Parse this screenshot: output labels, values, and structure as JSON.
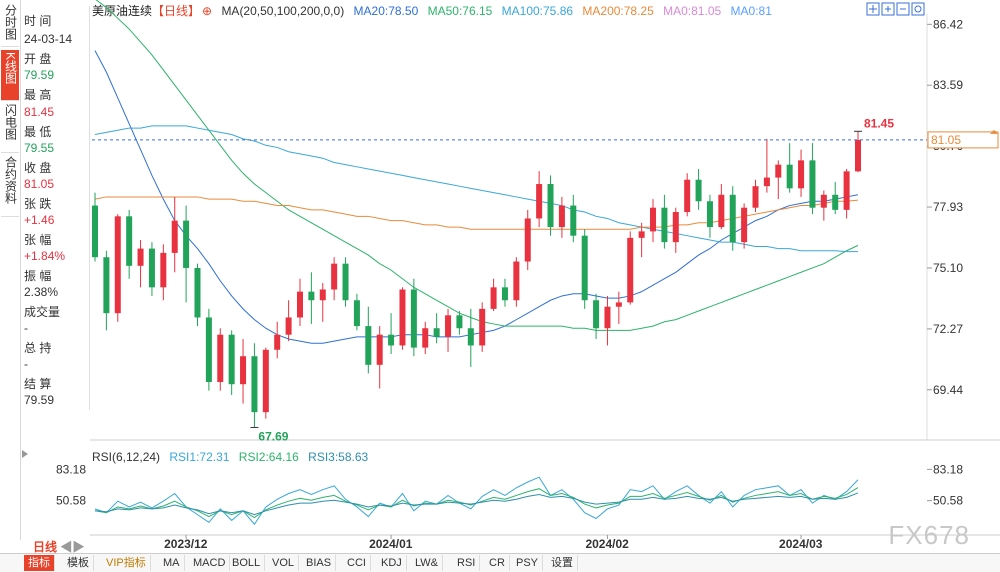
{
  "sidebar": {
    "tabs": [
      {
        "label": "分时图",
        "active": false
      },
      {
        "label": "K线图",
        "active": true
      },
      {
        "label": "闪电图",
        "active": false
      },
      {
        "label": "合约资料",
        "active": false
      }
    ]
  },
  "info": {
    "time_label": "时 间",
    "time": "24-03-14",
    "open_label": "开 盘",
    "open": "79.59",
    "high_label": "最 高",
    "high": "81.45",
    "low_label": "最 低",
    "low": "79.55",
    "close_label": "收 盘",
    "close": "81.05",
    "change_label": "张 跌",
    "change": "+1.46",
    "pct_label": "张 幅",
    "pct": "+1.84%",
    "amp_label": "振 幅",
    "amp": "2.38%",
    "volume_label": "成交量",
    "volume": "-",
    "oi_label": "总 持",
    "oi": "-",
    "settle_label": "结 算",
    "settle": "79.59"
  },
  "header": {
    "title": "美原油连续",
    "period": "【日线】",
    "ma_params": "MA(20,50,100,200,0,0)",
    "ma20": "MA20:78.50",
    "ma50": "MA50:76.15",
    "ma100": "MA100:75.86",
    "ma200": "MA200:78.25",
    "ma0a": "MA0:81.05",
    "ma0b": "MA0:81"
  },
  "rsi_header": {
    "params": "RSI(6,12,24)",
    "rsi1": "RSI1:72.31",
    "rsi2": "RSI2:64.16",
    "rsi3": "RSI3:58.63"
  },
  "bottom": {
    "period_label": "日线",
    "tabs": [
      "指标",
      "模板",
      "VIP指标",
      "MA",
      "MACD",
      "BOLL",
      "VOL",
      "BIAS",
      "CCI",
      "KDJ",
      "LW&",
      "RSI",
      "CR",
      "PSY",
      "设置"
    ]
  },
  "watermark": "FX678",
  "colors": {
    "up": "#e8323f",
    "down": "#22a35a",
    "ma20": "#2f6fd6",
    "ma50": "#2db36a",
    "ma100": "#3aa7d8",
    "ma200": "#e88b3a",
    "ma0": "#d98ad6",
    "ma0b": "#5aa0ff",
    "price_line": "#3a6fd8"
  },
  "chart_data": {
    "type": "candlestick",
    "price_axis": {
      "ticks": [
        "86.42",
        "83.59",
        "80.76",
        "77.93",
        "75.10",
        "72.27",
        "69.44"
      ],
      "ylim": [
        67.2,
        86.9
      ]
    },
    "x_labels": [
      "2023/12",
      "2024/01",
      "2024/02",
      "2024/03"
    ],
    "current_price": "81.05",
    "high_marker": "81.45",
    "low_marker": "67.69",
    "candles": [
      [
        78.0,
        78.6,
        75.4,
        75.6
      ],
      [
        75.6,
        75.9,
        72.2,
        73.0
      ],
      [
        73.0,
        77.6,
        72.6,
        77.5
      ],
      [
        77.5,
        77.8,
        74.6,
        75.2
      ],
      [
        75.2,
        76.4,
        74.2,
        76.0
      ],
      [
        76.0,
        76.3,
        73.8,
        74.2
      ],
      [
        74.2,
        76.2,
        73.6,
        75.8
      ],
      [
        75.8,
        78.4,
        74.9,
        77.3
      ],
      [
        77.3,
        78.0,
        73.5,
        75.1
      ],
      [
        75.1,
        75.3,
        72.4,
        72.8
      ],
      [
        72.8,
        73.2,
        69.4,
        69.8
      ],
      [
        69.8,
        72.3,
        69.4,
        72.0
      ],
      [
        72.0,
        72.2,
        69.2,
        69.7
      ],
      [
        69.7,
        71.8,
        68.8,
        71.0
      ],
      [
        71.0,
        71.6,
        67.69,
        68.4
      ],
      [
        68.4,
        71.4,
        68.1,
        71.3
      ],
      [
        71.3,
        72.6,
        70.9,
        72.0
      ],
      [
        72.0,
        73.6,
        71.7,
        72.8
      ],
      [
        72.8,
        74.6,
        72.4,
        74.0
      ],
      [
        74.0,
        74.9,
        72.5,
        73.6
      ],
      [
        73.6,
        74.4,
        72.6,
        74.1
      ],
      [
        74.1,
        75.6,
        73.6,
        75.3
      ],
      [
        75.3,
        75.6,
        73.3,
        73.6
      ],
      [
        73.6,
        73.9,
        72.2,
        72.4
      ],
      [
        72.4,
        73.3,
        70.2,
        70.6
      ],
      [
        70.6,
        72.4,
        69.5,
        72.0
      ],
      [
        72.0,
        73.0,
        71.1,
        71.5
      ],
      [
        71.5,
        74.2,
        71.3,
        74.1
      ],
      [
        74.1,
        74.6,
        71.0,
        71.4
      ],
      [
        71.4,
        72.6,
        71.1,
        72.3
      ],
      [
        72.3,
        73.0,
        71.6,
        71.9
      ],
      [
        71.9,
        73.2,
        71.2,
        72.9
      ],
      [
        72.9,
        73.1,
        72.0,
        72.3
      ],
      [
        72.3,
        73.2,
        70.5,
        71.5
      ],
      [
        71.5,
        73.5,
        71.2,
        73.2
      ],
      [
        73.2,
        74.6,
        73.1,
        74.2
      ],
      [
        74.2,
        74.6,
        73.3,
        73.6
      ],
      [
        73.6,
        75.6,
        73.3,
        75.4
      ],
      [
        75.4,
        77.8,
        75.0,
        77.4
      ],
      [
        77.4,
        79.6,
        77.0,
        79.0
      ],
      [
        79.0,
        79.4,
        76.6,
        77.0
      ],
      [
        77.0,
        78.4,
        76.5,
        78.0
      ],
      [
        78.0,
        78.5,
        76.3,
        76.6
      ],
      [
        76.6,
        76.9,
        73.2,
        73.6
      ],
      [
        73.6,
        73.9,
        71.8,
        72.3
      ],
      [
        72.3,
        73.8,
        71.5,
        73.3
      ],
      [
        73.3,
        74.0,
        72.5,
        73.5
      ],
      [
        73.5,
        76.8,
        73.4,
        76.5
      ],
      [
        76.5,
        77.2,
        75.6,
        76.8
      ],
      [
        76.8,
        78.3,
        76.3,
        77.9
      ],
      [
        77.9,
        78.5,
        76.0,
        76.3
      ],
      [
        76.3,
        77.9,
        75.8,
        77.7
      ],
      [
        77.7,
        79.5,
        77.5,
        79.2
      ],
      [
        79.2,
        79.7,
        77.8,
        78.2
      ],
      [
        78.2,
        78.5,
        76.5,
        77.0
      ],
      [
        77.0,
        79.0,
        76.9,
        78.5
      ],
      [
        78.5,
        78.9,
        75.9,
        76.3
      ],
      [
        76.3,
        78.1,
        76.0,
        77.9
      ],
      [
        77.9,
        79.2,
        77.7,
        78.9
      ],
      [
        78.9,
        81.1,
        78.6,
        79.3
      ],
      [
        79.3,
        80.1,
        78.3,
        79.9
      ],
      [
        79.9,
        80.9,
        78.6,
        78.8
      ],
      [
        78.8,
        80.6,
        78.4,
        80.1
      ],
      [
        80.1,
        80.9,
        77.6,
        77.9
      ],
      [
        77.9,
        78.7,
        77.3,
        78.5
      ],
      [
        78.5,
        79.1,
        77.6,
        77.8
      ],
      [
        77.8,
        79.7,
        77.4,
        79.59
      ],
      [
        79.59,
        81.45,
        79.55,
        81.05
      ]
    ],
    "ma_lines": {
      "ma20": [
        85.2,
        84.2,
        83.0,
        81.8,
        80.6,
        79.4,
        78.3,
        77.3,
        76.6,
        76.0,
        75.3,
        74.5,
        73.8,
        73.2,
        72.7,
        72.3,
        72.0,
        71.8,
        71.7,
        71.6,
        71.6,
        71.7,
        71.8,
        71.9,
        71.9,
        71.9,
        71.9,
        72.0,
        72.0,
        72.0,
        71.9,
        71.9,
        71.9,
        72.0,
        72.1,
        72.2,
        72.4,
        72.7,
        73.0,
        73.3,
        73.6,
        73.8,
        73.9,
        73.9,
        73.8,
        73.7,
        73.7,
        73.8,
        74.0,
        74.3,
        74.6,
        74.9,
        75.3,
        75.7,
        76.0,
        76.4,
        76.7,
        77.0,
        77.3,
        77.5,
        77.8,
        78.0,
        78.1,
        78.2,
        78.2,
        78.3,
        78.4,
        78.5
      ],
      "ma50": [
        87.6,
        87.2,
        86.7,
        86.2,
        85.6,
        85.0,
        84.3,
        83.6,
        82.9,
        82.2,
        81.5,
        80.8,
        80.1,
        79.5,
        79.0,
        78.6,
        78.2,
        77.8,
        77.5,
        77.2,
        76.9,
        76.6,
        76.3,
        76.0,
        75.7,
        75.3,
        75.0,
        74.6,
        74.2,
        73.9,
        73.6,
        73.3,
        73.0,
        72.8,
        72.6,
        72.5,
        72.4,
        72.4,
        72.4,
        72.4,
        72.4,
        72.4,
        72.3,
        72.3,
        72.2,
        72.2,
        72.2,
        72.2,
        72.3,
        72.4,
        72.6,
        72.7,
        72.9,
        73.1,
        73.3,
        73.5,
        73.7,
        73.9,
        74.1,
        74.3,
        74.5,
        74.7,
        74.9,
        75.1,
        75.3,
        75.6,
        75.9,
        76.15
      ],
      "ma100": [
        81.3,
        81.4,
        81.5,
        81.6,
        81.6,
        81.7,
        81.7,
        81.7,
        81.7,
        81.6,
        81.5,
        81.4,
        81.3,
        81.1,
        81.0,
        80.8,
        80.7,
        80.5,
        80.4,
        80.3,
        80.2,
        80.0,
        79.9,
        79.8,
        79.7,
        79.6,
        79.5,
        79.4,
        79.3,
        79.2,
        79.1,
        79.0,
        78.9,
        78.8,
        78.7,
        78.6,
        78.5,
        78.4,
        78.3,
        78.2,
        78.1,
        78.0,
        77.8,
        77.7,
        77.5,
        77.4,
        77.2,
        77.1,
        77.0,
        76.9,
        76.8,
        76.7,
        76.6,
        76.5,
        76.4,
        76.3,
        76.3,
        76.2,
        76.1,
        76.1,
        76.0,
        76.0,
        75.9,
        75.9,
        75.9,
        75.9,
        75.86,
        75.86
      ],
      "ma200": [
        78.3,
        78.4,
        78.4,
        78.4,
        78.4,
        78.4,
        78.4,
        78.4,
        78.4,
        78.4,
        78.3,
        78.3,
        78.3,
        78.2,
        78.2,
        78.1,
        78.0,
        78.0,
        77.9,
        77.8,
        77.8,
        77.7,
        77.6,
        77.5,
        77.5,
        77.4,
        77.3,
        77.3,
        77.2,
        77.1,
        77.1,
        77.0,
        77.0,
        76.9,
        76.9,
        76.9,
        76.9,
        76.9,
        76.9,
        76.9,
        76.9,
        76.9,
        76.9,
        76.9,
        76.9,
        76.9,
        76.9,
        76.9,
        77.0,
        77.0,
        77.0,
        77.1,
        77.1,
        77.2,
        77.2,
        77.3,
        77.4,
        77.5,
        77.6,
        77.7,
        77.8,
        77.9,
        78.0,
        78.0,
        78.1,
        78.2,
        78.2,
        78.25
      ]
    },
    "rsi_axis": {
      "ticks": [
        "83.18",
        "50.58"
      ],
      "ylim": [
        20,
        95
      ]
    },
    "rsi": {
      "rsi1": [
        42,
        38,
        50,
        44,
        49,
        43,
        50,
        58,
        44,
        36,
        28,
        42,
        30,
        40,
        26,
        44,
        52,
        58,
        62,
        57,
        62,
        66,
        52,
        44,
        34,
        48,
        44,
        58,
        40,
        50,
        47,
        56,
        48,
        42,
        55,
        62,
        56,
        64,
        70,
        75,
        56,
        62,
        52,
        38,
        32,
        42,
        46,
        62,
        60,
        66,
        52,
        60,
        66,
        56,
        48,
        60,
        44,
        56,
        62,
        64,
        66,
        56,
        62,
        48,
        56,
        52,
        60,
        72.31
      ],
      "rsi2": [
        40,
        38,
        44,
        42,
        45,
        42,
        45,
        50,
        44,
        40,
        34,
        40,
        36,
        40,
        33,
        41,
        46,
        50,
        53,
        51,
        54,
        56,
        50,
        46,
        41,
        46,
        44,
        51,
        45,
        48,
        47,
        51,
        49,
        46,
        50,
        54,
        52,
        56,
        60,
        63,
        56,
        58,
        54,
        47,
        43,
        46,
        48,
        55,
        55,
        58,
        53,
        56,
        59,
        55,
        51,
        56,
        49,
        53,
        56,
        58,
        60,
        56,
        58,
        52,
        55,
        53,
        57,
        64.16
      ],
      "rsi3": [
        40,
        39,
        42,
        41,
        43,
        42,
        43,
        46,
        43,
        41,
        37,
        40,
        38,
        40,
        36,
        40,
        43,
        46,
        48,
        48,
        50,
        51,
        49,
        47,
        44,
        46,
        45,
        48,
        46,
        47,
        47,
        49,
        48,
        47,
        49,
        51,
        50,
        52,
        55,
        57,
        54,
        55,
        53,
        49,
        47,
        48,
        49,
        52,
        52,
        54,
        52,
        53,
        55,
        53,
        52,
        54,
        50,
        52,
        53,
        54,
        55,
        54,
        55,
        52,
        53,
        52,
        54,
        58.63
      ]
    }
  }
}
